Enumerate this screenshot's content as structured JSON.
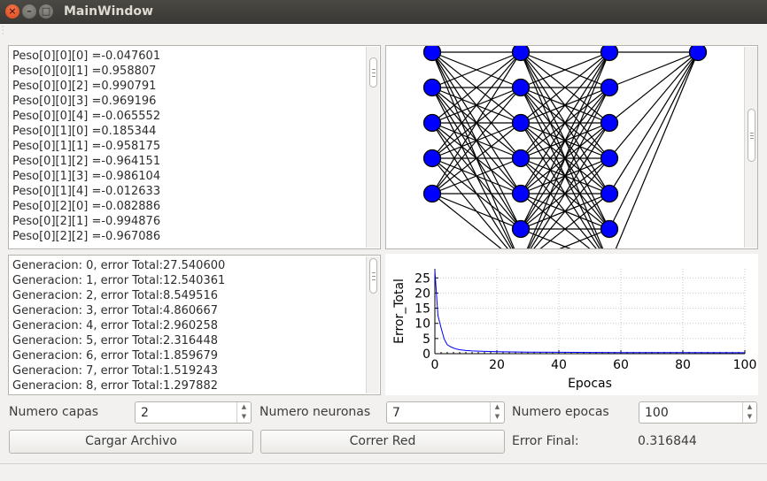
{
  "window": {
    "title": "MainWindow"
  },
  "weights": [
    "Peso[0][0][0] =-0.047601",
    "Peso[0][0][1] =0.958807",
    "Peso[0][0][2] =0.990791",
    "Peso[0][0][3] =0.969196",
    "Peso[0][0][4] =-0.065552",
    "Peso[0][1][0] =0.185344",
    "Peso[0][1][1] =-0.958175",
    "Peso[0][1][2] =-0.964151",
    "Peso[0][1][3] =-0.986104",
    "Peso[0][1][4] =-0.012633",
    "Peso[0][2][0] =-0.082886",
    "Peso[0][2][1] =-0.994876",
    "Peso[0][2][2] =-0.967086"
  ],
  "generations": [
    "Generacion: 0, error Total:27.540600",
    "Generacion: 1, error Total:12.540361",
    "Generacion: 2, error Total:8.549516",
    "Generacion: 3, error Total:4.860667",
    "Generacion: 4, error Total:2.960258",
    "Generacion: 5, error Total:2.316448",
    "Generacion: 6, error Total:1.859679",
    "Generacion: 7, error Total:1.519243",
    "Generacion: 8, error Total:1.297882"
  ],
  "network": {
    "layers": [
      5,
      7,
      7,
      1
    ],
    "node_color": "#0000ff"
  },
  "controls": {
    "capas_label": "Numero capas",
    "capas_value": "2",
    "neuronas_label": "Numero neuronas",
    "neuronas_value": "7",
    "epocas_label": "Numero epocas",
    "epocas_value": "100",
    "load_button": "Cargar Archivo",
    "run_button": "Correr Red",
    "error_final_label": "Error Final:",
    "error_final_value": "0.316844"
  },
  "chart_data": {
    "type": "line",
    "xlabel": "Epocas",
    "ylabel": "Error_Total",
    "xlim": [
      0,
      100
    ],
    "ylim": [
      0,
      28
    ],
    "xticks": [
      0,
      20,
      40,
      60,
      80,
      100
    ],
    "yticks": [
      0,
      5,
      10,
      15,
      20,
      25
    ],
    "grid": true,
    "series": [
      {
        "color": "#0000ff",
        "x": [
          0,
          1,
          2,
          3,
          4,
          5,
          6,
          7,
          8,
          10,
          12,
          15,
          20,
          25,
          30,
          40,
          50,
          60,
          70,
          80,
          90,
          100
        ],
        "values": [
          27.54,
          12.54,
          8.55,
          4.86,
          2.96,
          2.32,
          1.86,
          1.52,
          1.3,
          1.05,
          0.9,
          0.78,
          0.65,
          0.58,
          0.52,
          0.46,
          0.42,
          0.39,
          0.36,
          0.34,
          0.33,
          0.32
        ]
      }
    ]
  }
}
